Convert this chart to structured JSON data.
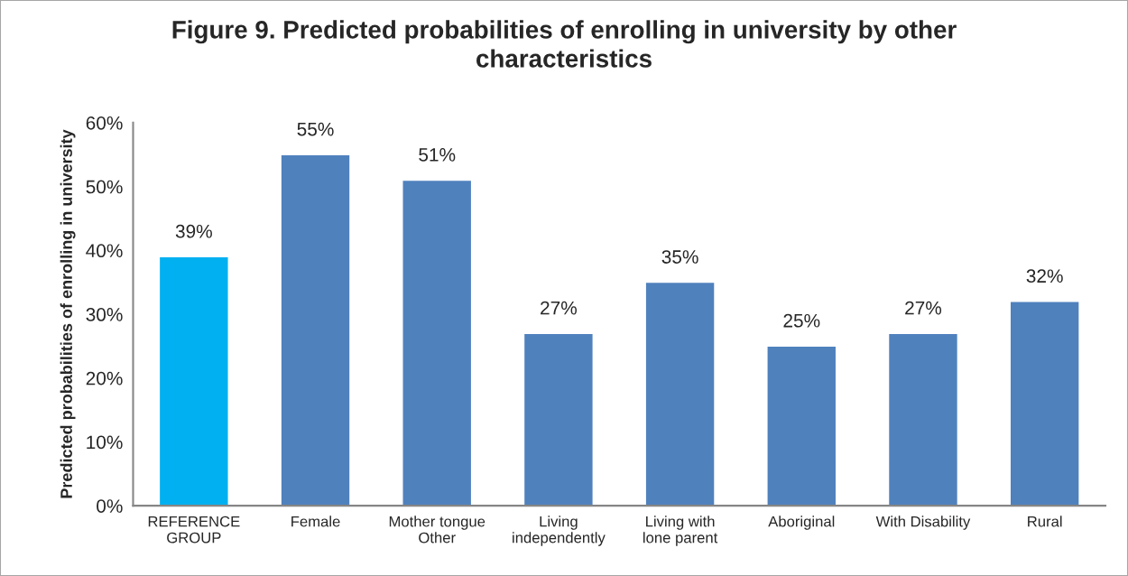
{
  "chart_data": {
    "type": "bar",
    "title": "Figure 9. Predicted probabilities of enrolling in university by other\ncharacteristics",
    "ylabel": "Predicted probabilities of enrolling in university",
    "categories": [
      "REFERENCE\nGROUP",
      "Female",
      "Mother tongue\nOther",
      "Living\nindependently",
      "Living with\nlone parent",
      "Aboriginal",
      "With Disability",
      "Rural"
    ],
    "values": [
      39,
      55,
      51,
      27,
      35,
      25,
      27,
      32
    ],
    "colors": [
      "#00b0f0",
      "#4f81bd",
      "#4f81bd",
      "#4f81bd",
      "#4f81bd",
      "#4f81bd",
      "#4f81bd",
      "#4f81bd"
    ],
    "value_labels": [
      "39%",
      "55%",
      "51%",
      "27%",
      "35%",
      "25%",
      "27%",
      "32%"
    ],
    "ylim": [
      0,
      60
    ],
    "yticks": [
      {
        "value": 0,
        "label": "0%"
      },
      {
        "value": 10,
        "label": "10%"
      },
      {
        "value": 20,
        "label": "20%"
      },
      {
        "value": 30,
        "label": "30%"
      },
      {
        "value": 40,
        "label": "40%"
      },
      {
        "value": 50,
        "label": "50%"
      },
      {
        "value": 60,
        "label": "60%"
      }
    ],
    "grid": false,
    "legend": false
  }
}
